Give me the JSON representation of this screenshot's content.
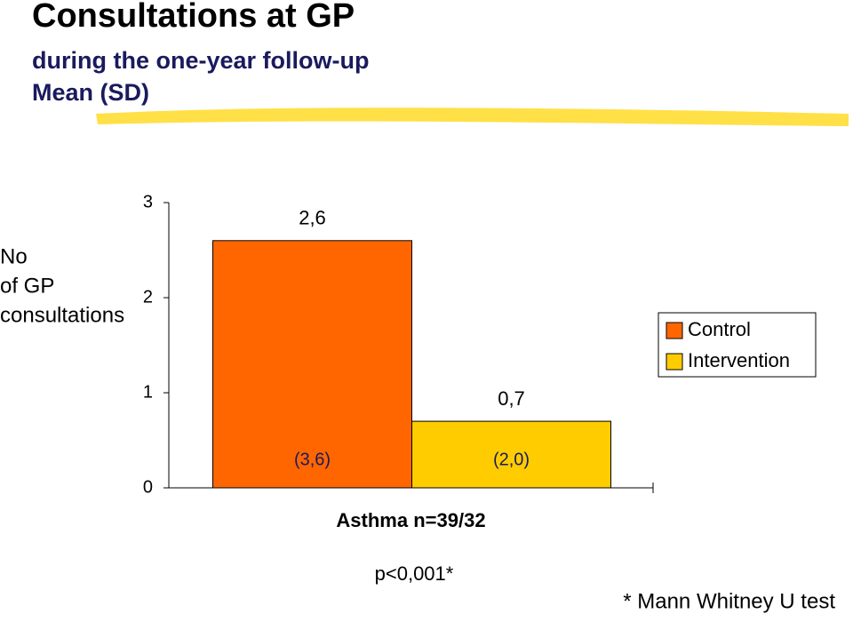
{
  "chart_data": {
    "type": "bar",
    "title": "Consultations at GP",
    "subtitle": [
      "during the one-year follow-up",
      "Mean (SD)"
    ],
    "y_label": [
      "No",
      "of GP",
      "consultations"
    ],
    "categories": [
      "Asthma n=39/32"
    ],
    "series": [
      {
        "name": "Control",
        "color": "#ff6600",
        "values": [
          2.6
        ],
        "value_labels": [
          "2,6"
        ],
        "sd_labels": [
          "(3,6)"
        ]
      },
      {
        "name": "Intervention",
        "color": "#ffcc00",
        "values": [
          0.7
        ],
        "value_labels": [
          "0,7"
        ],
        "sd_labels": [
          "(2,0)"
        ]
      }
    ],
    "ylim": [
      0,
      3
    ],
    "yticks": [
      0,
      1,
      2,
      3
    ],
    "annotations": [
      "p<0,001*",
      "* Mann Whitney U test"
    ]
  }
}
